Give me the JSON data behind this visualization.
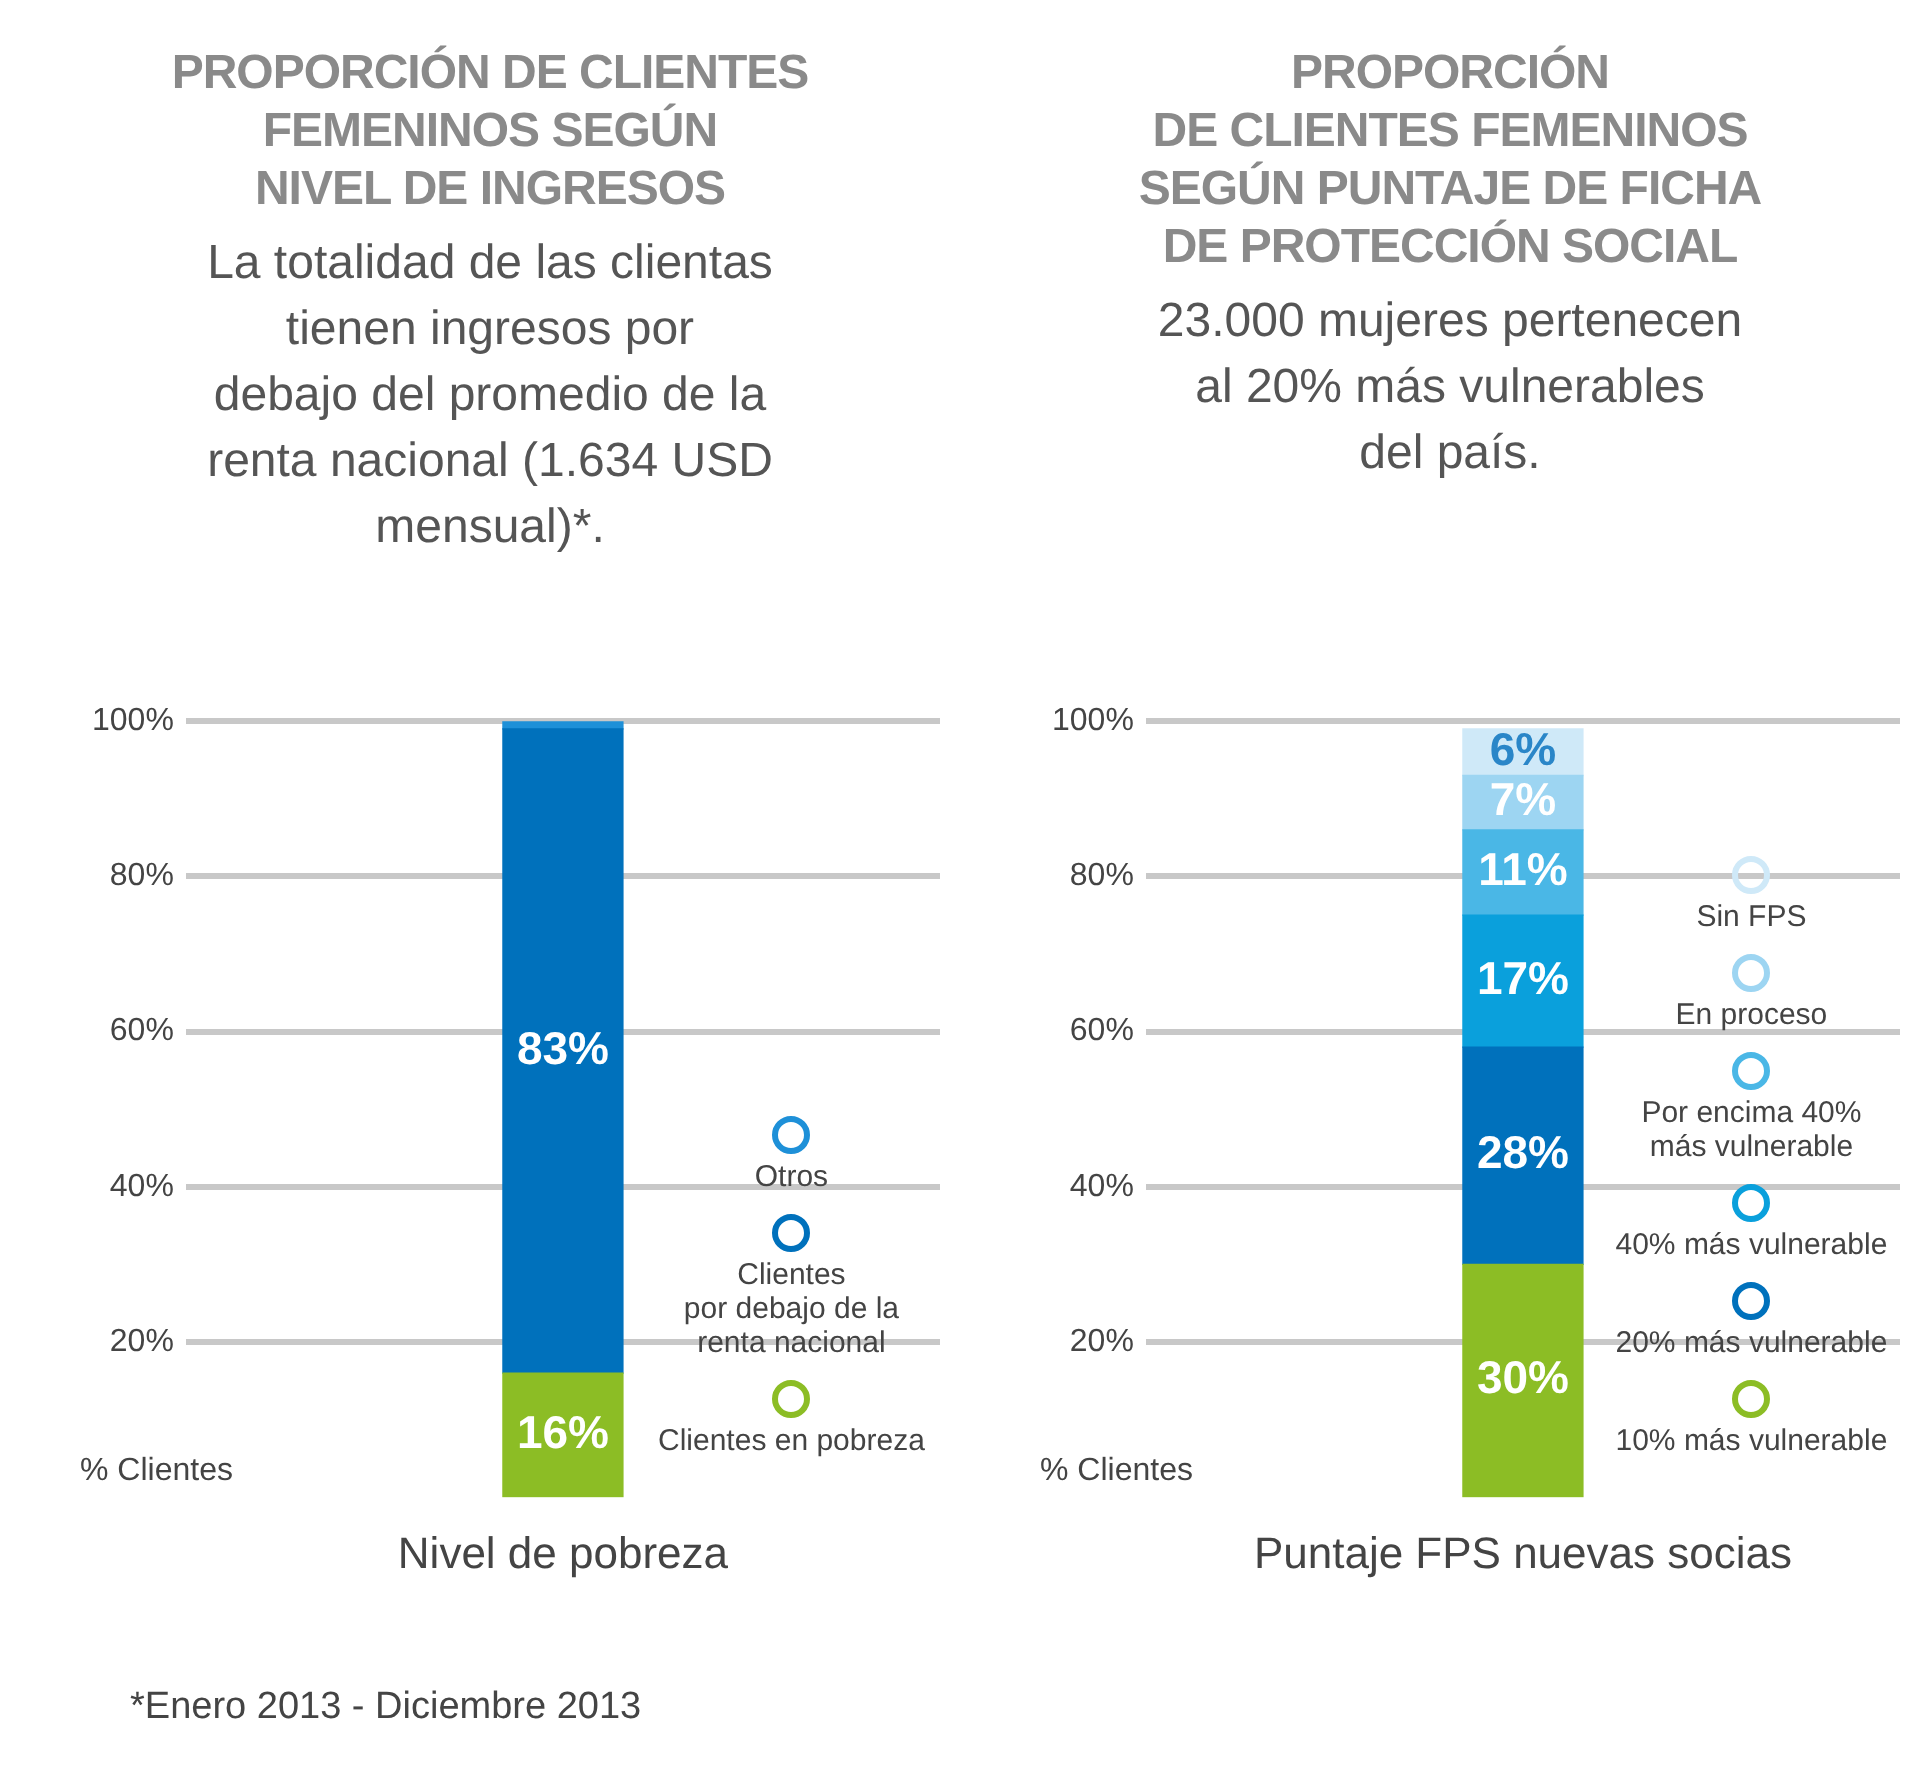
{
  "chart_data": [
    {
      "type": "bar",
      "title": "PROPORCIÓN DE CLIENTES\nFEMENINOS SEGÚN\nNIVEL DE INGRESOS",
      "subtitle": "La totalidad de las clientas\ntienen ingresos por\ndebajo del promedio de la\nrenta nacional (1.634 USD\nmensual)*.",
      "xlabel": "Nivel de pobreza",
      "ylabel": "% Clientes",
      "categories": [
        null
      ],
      "stacked": true,
      "ylim": [
        0,
        100
      ],
      "yticks": [
        {
          "value": 20,
          "label": "20%"
        },
        {
          "value": 40,
          "label": "40%"
        },
        {
          "value": 60,
          "label": "60%"
        },
        {
          "value": 80,
          "label": "80%"
        },
        {
          "value": 100,
          "label": "100%"
        }
      ],
      "grid": "y",
      "legend": "right",
      "series": [
        {
          "name": "Clientes en pobreza",
          "color": "#8cbd25",
          "values": [
            16
          ],
          "value_labels": [
            "16%"
          ]
        },
        {
          "name": "Clientes\npor debajo de la\nrenta nacional",
          "color": "#0071bc",
          "values": [
            83
          ],
          "value_labels": [
            "83%"
          ]
        },
        {
          "name": "Otros",
          "color": "#1e90d8",
          "values": [
            1
          ],
          "value_labels": [
            null
          ]
        }
      ],
      "annotations": [
        "*Enero 2013 - Diciembre 2013"
      ]
    },
    {
      "type": "bar",
      "title": "PROPORCIÓN\nDE CLIENTES FEMENINOS\nSEGÚN PUNTAJE DE FICHA\nDE PROTECCIÓN SOCIAL",
      "subtitle": "23.000 mujeres pertenecen\nal 20% más vulnerables\ndel país.",
      "xlabel": "Puntaje FPS nuevas socias",
      "ylabel": "% Clientes",
      "categories": [
        null
      ],
      "stacked": true,
      "ylim": [
        0,
        100
      ],
      "yticks": [
        {
          "value": 20,
          "label": "20%"
        },
        {
          "value": 40,
          "label": "40%"
        },
        {
          "value": 60,
          "label": "60%"
        },
        {
          "value": 80,
          "label": "80%"
        },
        {
          "value": 100,
          "label": "100%"
        }
      ],
      "grid": "y",
      "legend": "right",
      "series": [
        {
          "name": "10% más vulnerable",
          "color": "#8cbd25",
          "values": [
            30
          ],
          "value_labels": [
            "30%"
          ]
        },
        {
          "name": "20% más vulnerable",
          "color": "#0071bc",
          "values": [
            28
          ],
          "value_labels": [
            "28%"
          ]
        },
        {
          "name": "40% más vulnerable",
          "color": "#0aa0dc",
          "values": [
            17
          ],
          "value_labels": [
            "17%"
          ]
        },
        {
          "name": "Por encima 40%\nmás vulnerable",
          "color": "#4ab7e6",
          "values": [
            11
          ],
          "value_labels": [
            "11%"
          ]
        },
        {
          "name": "En proceso",
          "color": "#9dd5f2",
          "values": [
            7
          ],
          "value_labels": [
            "7%"
          ]
        },
        {
          "name": "Sin FPS",
          "color": "#cfe9f8",
          "values": [
            6
          ],
          "value_labels": [
            "6%"
          ]
        }
      ]
    }
  ]
}
